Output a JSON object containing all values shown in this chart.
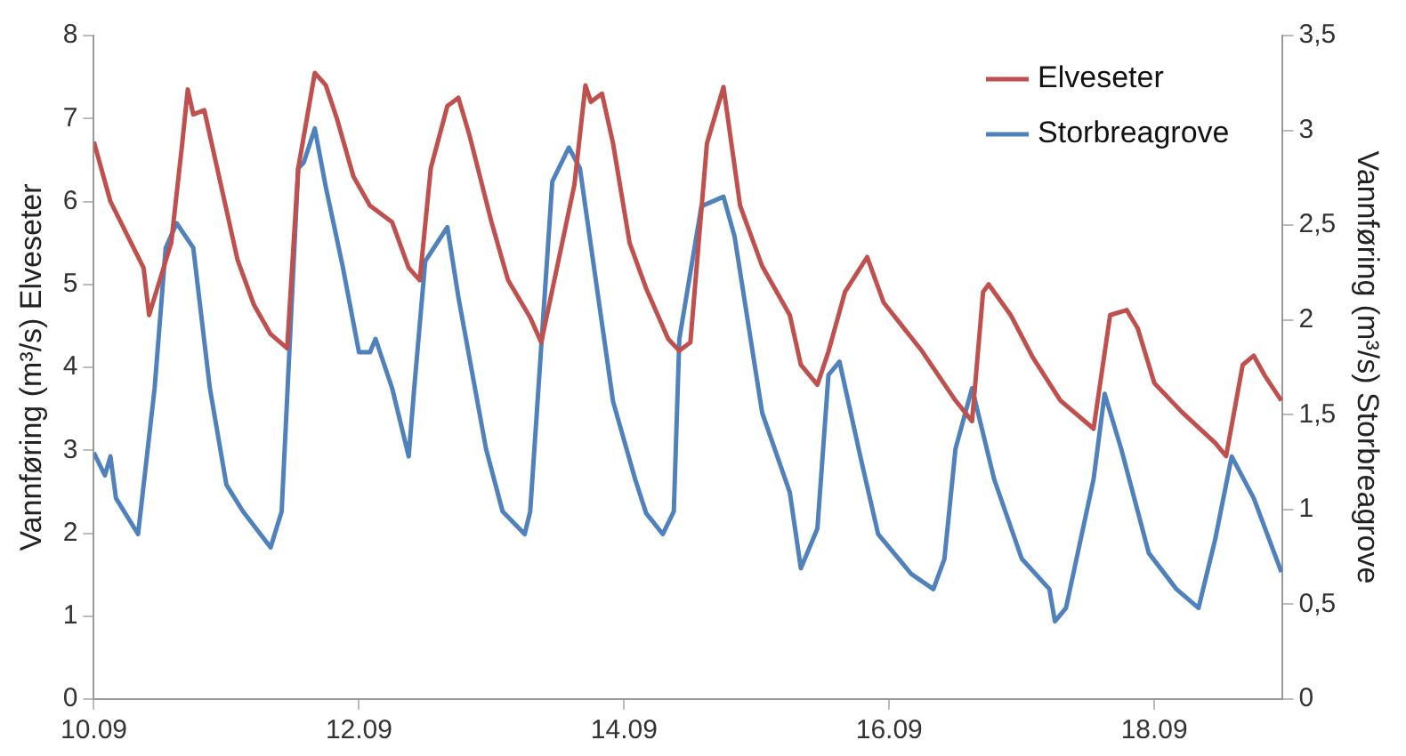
{
  "chart_data": {
    "type": "line",
    "ylabel": "Vannføring (m³/s) Elveseter",
    "y2label": "Vannføring (m³/s) Storbreagrove",
    "xlim": [
      "--09-10",
      "--09-18T23:15"
    ],
    "xticks": [
      {
        "value": "--09-10",
        "label": "10.09"
      },
      {
        "value": "--09-12",
        "label": "12.09"
      },
      {
        "value": "--09-14",
        "label": "14.09"
      },
      {
        "value": "--09-16",
        "label": "16.09"
      },
      {
        "value": "--09-18",
        "label": "18.09"
      }
    ],
    "ylim": [
      0,
      8
    ],
    "yticks": [
      0,
      1,
      2,
      3,
      4,
      5,
      6,
      7,
      8
    ],
    "y2lim": [
      0,
      3.5
    ],
    "y2ticks": [
      0,
      {
        "value": 0.5,
        "label": "0,5"
      },
      1,
      {
        "value": 1.5,
        "label": "1,5"
      },
      2,
      {
        "value": 2.5,
        "label": "2,5"
      },
      3,
      {
        "value": 3.5,
        "label": "3,5"
      }
    ],
    "legend": "top right",
    "grid": false,
    "marker": "none",
    "line_style": "solid",
    "series": [
      {
        "name": "Elveseter",
        "color": "#c0504d",
        "x": [
          "--09-10T00:00",
          "--09-10T03:00",
          "--09-10T06:00",
          "--09-10T09:00",
          "--09-10T10:00",
          "--09-10T14:00",
          "--09-10T16:00",
          "--09-10T17:00",
          "--09-10T18:00",
          "--09-10T20:00",
          "--09-10T23:00",
          "--09-11T02:00",
          "--09-11T05:00",
          "--09-11T08:00",
          "--09-11T11:00",
          "--09-11T13:00",
          "--09-11T16:00",
          "--09-11T18:00",
          "--09-11T20:00",
          "--09-11T23:00",
          "--09-12T02:00",
          "--09-12T06:00",
          "--09-12T09:00",
          "--09-12T11:00",
          "--09-12T13:00",
          "--09-12T16:00",
          "--09-12T18:00",
          "--09-12T20:00",
          "--09-13T00:00",
          "--09-13T03:00",
          "--09-13T07:00",
          "--09-13T09:00",
          "--09-13T15:00",
          "--09-13T17:00",
          "--09-13T18:00",
          "--09-13T20:00",
          "--09-13T22:00",
          "--09-14T01:00",
          "--09-14T04:00",
          "--09-14T08:00",
          "--09-14T10:00",
          "--09-14T12:00",
          "--09-14T15:00",
          "--09-14T18:00",
          "--09-14T21:00",
          "--09-15T01:00",
          "--09-15T06:00",
          "--09-15T08:00",
          "--09-15T11:00",
          "--09-15T13:00",
          "--09-15T16:00",
          "--09-15T20:00",
          "--09-15T23:00",
          "--09-16T06:00",
          "--09-16T12:00",
          "--09-16T15:00",
          "--09-16T17:00",
          "--09-16T18:00",
          "--09-16T22:00",
          "--09-17T02:00",
          "--09-17T07:00",
          "--09-17T13:00",
          "--09-17T16:00",
          "--09-17T19:00",
          "--09-17T21:00",
          "--09-18T00:00",
          "--09-18T05:00",
          "--09-18T11:00",
          "--09-18T13:00",
          "--09-18T16:00",
          "--09-18T18:00",
          "--09-18T20:00",
          "--09-18T23:00"
        ],
        "values": [
          6.72,
          6.0,
          5.6,
          5.2,
          4.63,
          5.5,
          6.7,
          7.35,
          7.05,
          7.1,
          6.2,
          5.3,
          4.75,
          4.4,
          4.23,
          6.4,
          7.55,
          7.4,
          7.0,
          6.3,
          5.95,
          5.75,
          5.2,
          5.05,
          6.4,
          7.15,
          7.25,
          6.8,
          5.75,
          5.05,
          4.6,
          4.3,
          6.2,
          7.4,
          7.2,
          7.3,
          6.7,
          5.5,
          4.95,
          4.34,
          4.2,
          4.3,
          6.7,
          7.38,
          5.95,
          5.22,
          4.63,
          4.03,
          3.79,
          4.19,
          4.91,
          5.33,
          4.78,
          4.19,
          3.6,
          3.35,
          4.91,
          5.0,
          4.63,
          4.12,
          3.6,
          3.26,
          4.63,
          4.69,
          4.47,
          3.81,
          3.46,
          3.09,
          2.93,
          4.03,
          4.14,
          3.9,
          3.6
        ]
      },
      {
        "name": "Storbreagrove",
        "color": "#4f81bd",
        "axis": "y2",
        "x": [
          "--09-10T00:00",
          "--09-10T02:00",
          "--09-10T03:00",
          "--09-10T04:00",
          "--09-10T08:00",
          "--09-10T11:00",
          "--09-10T13:00",
          "--09-10T15:00",
          "--09-10T18:00",
          "--09-10T21:00",
          "--09-11T00:00",
          "--09-11T03:00",
          "--09-11T08:00",
          "--09-11T10:00",
          "--09-11T13:00",
          "--09-11T14:00",
          "--09-11T16:00",
          "--09-11T18:00",
          "--09-11T21:00",
          "--09-12T00:00",
          "--09-12T02:00",
          "--09-12T03:00",
          "--09-12T06:00",
          "--09-12T09:00",
          "--09-12T10:00",
          "--09-12T12:00",
          "--09-12T16:00",
          "--09-12T18:00",
          "--09-12T23:00",
          "--09-13T02:00",
          "--09-13T06:00",
          "--09-13T07:00",
          "--09-13T11:00",
          "--09-13T14:00",
          "--09-13T16:00",
          "--09-13T22:00",
          "--09-14T02:00",
          "--09-14T04:00",
          "--09-14T07:00",
          "--09-14T09:00",
          "--09-14T10:00",
          "--09-14T14:00",
          "--09-14T18:00",
          "--09-14T20:00",
          "--09-15T01:00",
          "--09-15T06:00",
          "--09-15T08:00",
          "--09-15T11:00",
          "--09-15T13:00",
          "--09-15T15:00",
          "--09-15T19:00",
          "--09-15T22:00",
          "--09-16T04:00",
          "--09-16T08:00",
          "--09-16T10:00",
          "--09-16T12:00",
          "--09-16T15:00",
          "--09-16T19:00",
          "--09-17T00:00",
          "--09-17T05:00",
          "--09-17T06:00",
          "--09-17T08:00",
          "--09-17T13:00",
          "--09-17T15:00",
          "--09-17T18:00",
          "--09-17T23:00",
          "--09-18T04:00",
          "--09-18T08:00",
          "--09-18T11:00",
          "--09-18T14:00",
          "--09-18T18:00",
          "--09-18T23:00"
        ],
        "values": [
          1.3,
          1.18,
          1.28,
          1.06,
          0.87,
          1.64,
          2.38,
          2.51,
          2.38,
          1.64,
          1.13,
          0.99,
          0.8,
          0.99,
          2.8,
          2.83,
          3.01,
          2.7,
          2.29,
          1.83,
          1.83,
          1.9,
          1.64,
          1.28,
          1.64,
          2.31,
          2.49,
          2.12,
          1.32,
          0.99,
          0.87,
          0.99,
          2.73,
          2.91,
          2.8,
          1.57,
          1.16,
          0.98,
          0.87,
          0.99,
          1.9,
          2.6,
          2.65,
          2.44,
          1.51,
          1.09,
          0.69,
          0.9,
          1.71,
          1.78,
          1.25,
          0.87,
          0.66,
          0.58,
          0.74,
          1.32,
          1.64,
          1.16,
          0.74,
          0.58,
          0.41,
          0.48,
          1.16,
          1.61,
          1.32,
          0.77,
          0.58,
          0.48,
          0.84,
          1.28,
          1.06,
          0.67
        ]
      }
    ]
  }
}
